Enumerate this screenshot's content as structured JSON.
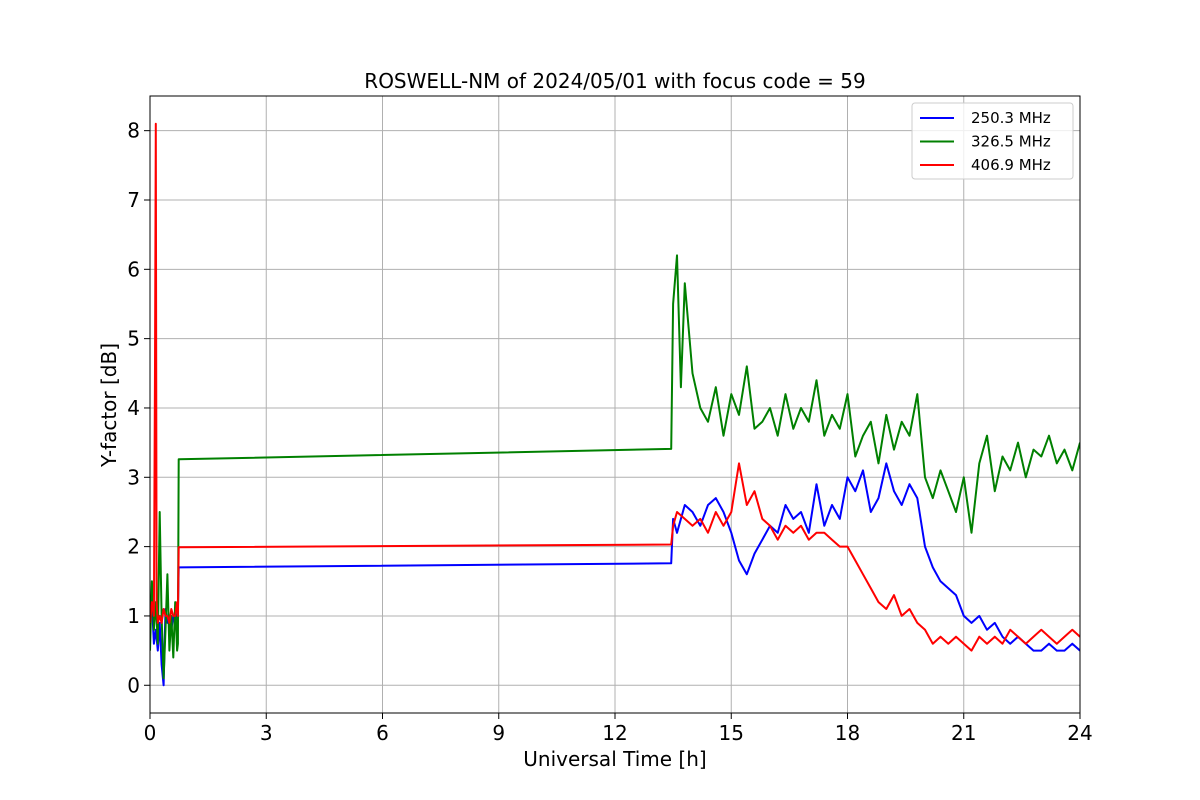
{
  "chart_data": {
    "type": "line",
    "title": "ROSWELL-NM of 2024/05/01 with focus code = 59",
    "xlabel": "Universal Time [h]",
    "ylabel": "Y-factor [dB]",
    "xlim": [
      0,
      24
    ],
    "ylim": [
      -0.4,
      8.5
    ],
    "xticks": [
      0,
      3,
      6,
      9,
      12,
      15,
      18,
      21,
      24
    ],
    "yticks": [
      0,
      1,
      2,
      3,
      4,
      5,
      6,
      7,
      8
    ],
    "grid": true,
    "legend_position": "top-right",
    "series": [
      {
        "name": "250.3 MHz",
        "color": "#0000ff",
        "x": [
          0,
          0.05,
          0.1,
          0.15,
          0.2,
          0.25,
          0.3,
          0.35,
          0.4,
          0.45,
          0.5,
          0.55,
          0.6,
          0.65,
          0.7,
          0.72,
          0.74,
          13.45,
          13.5,
          13.6,
          13.8,
          14.0,
          14.2,
          14.4,
          14.6,
          14.8,
          15.0,
          15.2,
          15.4,
          15.6,
          15.8,
          16.0,
          16.2,
          16.4,
          16.6,
          16.8,
          17.0,
          17.2,
          17.4,
          17.6,
          17.8,
          18.0,
          18.2,
          18.4,
          18.6,
          18.8,
          19.0,
          19.2,
          19.4,
          19.6,
          19.8,
          20.0,
          20.2,
          20.4,
          20.6,
          20.8,
          21.0,
          21.2,
          21.4,
          21.6,
          21.8,
          22.0,
          22.2,
          22.4,
          22.6,
          22.8,
          23.0,
          23.2,
          23.4,
          23.6,
          23.8,
          24.0
        ],
        "y": [
          0.9,
          1.2,
          0.6,
          0.8,
          0.5,
          0.9,
          0.3,
          0.0,
          1.1,
          0.9,
          1.0,
          0.8,
          1.0,
          0.9,
          1.0,
          1.05,
          1.7,
          1.76,
          2.4,
          2.2,
          2.6,
          2.5,
          2.3,
          2.6,
          2.7,
          2.5,
          2.2,
          1.8,
          1.6,
          1.9,
          2.1,
          2.3,
          2.2,
          2.6,
          2.4,
          2.5,
          2.2,
          2.9,
          2.3,
          2.6,
          2.4,
          3.0,
          2.8,
          3.1,
          2.5,
          2.7,
          3.2,
          2.8,
          2.6,
          2.9,
          2.7,
          2.0,
          1.7,
          1.5,
          1.4,
          1.3,
          1.0,
          0.9,
          1.0,
          0.8,
          0.9,
          0.7,
          0.6,
          0.7,
          0.6,
          0.5,
          0.5,
          0.6,
          0.5,
          0.5,
          0.6,
          0.5
        ]
      },
      {
        "name": "326.5 MHz",
        "color": "#008000",
        "x": [
          0,
          0.05,
          0.1,
          0.15,
          0.2,
          0.25,
          0.3,
          0.35,
          0.4,
          0.45,
          0.5,
          0.55,
          0.6,
          0.65,
          0.7,
          0.72,
          0.74,
          13.45,
          13.5,
          13.6,
          13.7,
          13.8,
          14.0,
          14.2,
          14.4,
          14.6,
          14.8,
          15.0,
          15.2,
          15.4,
          15.6,
          15.8,
          16.0,
          16.2,
          16.4,
          16.6,
          16.8,
          17.0,
          17.2,
          17.4,
          17.6,
          17.8,
          18.0,
          18.2,
          18.4,
          18.6,
          18.8,
          19.0,
          19.2,
          19.4,
          19.6,
          19.8,
          20.0,
          20.2,
          20.4,
          20.6,
          20.8,
          21.0,
          21.2,
          21.4,
          21.6,
          21.8,
          22.0,
          22.2,
          22.4,
          22.6,
          22.8,
          23.0,
          23.2,
          23.4,
          23.6,
          23.8,
          24.0
        ],
        "y": [
          0.5,
          1.5,
          0.8,
          1.2,
          0.6,
          2.5,
          1.0,
          0.1,
          0.8,
          1.6,
          0.5,
          1.0,
          0.4,
          1.2,
          0.5,
          0.6,
          3.26,
          3.41,
          5.5,
          6.2,
          4.3,
          5.8,
          4.5,
          4.0,
          3.8,
          4.3,
          3.6,
          4.2,
          3.9,
          4.6,
          3.7,
          3.8,
          4.0,
          3.6,
          4.2,
          3.7,
          4.0,
          3.8,
          4.4,
          3.6,
          3.9,
          3.7,
          4.2,
          3.3,
          3.6,
          3.8,
          3.2,
          3.9,
          3.4,
          3.8,
          3.6,
          4.2,
          3.0,
          2.7,
          3.1,
          2.8,
          2.5,
          3.0,
          2.2,
          3.2,
          3.6,
          2.8,
          3.3,
          3.1,
          3.5,
          3.0,
          3.4,
          3.3,
          3.6,
          3.2,
          3.4,
          3.1,
          3.5
        ]
      },
      {
        "name": "406.9 MHz",
        "color": "#ff0000",
        "x": [
          0,
          0.05,
          0.1,
          0.13,
          0.15,
          0.17,
          0.2,
          0.25,
          0.3,
          0.35,
          0.4,
          0.45,
          0.5,
          0.55,
          0.6,
          0.65,
          0.7,
          0.72,
          0.74,
          13.45,
          13.5,
          13.6,
          13.8,
          14.0,
          14.2,
          14.4,
          14.6,
          14.8,
          15.0,
          15.2,
          15.4,
          15.6,
          15.8,
          16.0,
          16.2,
          16.4,
          16.6,
          16.8,
          17.0,
          17.2,
          17.4,
          17.6,
          17.8,
          18.0,
          18.2,
          18.4,
          18.6,
          18.8,
          19.0,
          19.2,
          19.4,
          19.6,
          19.8,
          20.0,
          20.2,
          20.4,
          20.6,
          20.8,
          21.0,
          21.2,
          21.4,
          21.6,
          21.8,
          22.0,
          22.2,
          22.4,
          22.6,
          22.8,
          23.0,
          23.2,
          23.4,
          23.6,
          23.8,
          24.0
        ],
        "y": [
          0.9,
          1.2,
          1.0,
          4.6,
          8.1,
          1.2,
          0.9,
          1.0,
          0.9,
          1.1,
          1.0,
          1.0,
          0.9,
          1.1,
          1.0,
          1.0,
          1.2,
          1.0,
          1.99,
          2.03,
          2.3,
          2.5,
          2.4,
          2.3,
          2.4,
          2.2,
          2.5,
          2.3,
          2.5,
          3.2,
          2.6,
          2.8,
          2.4,
          2.3,
          2.1,
          2.3,
          2.2,
          2.3,
          2.1,
          2.2,
          2.2,
          2.1,
          2.0,
          2.0,
          1.8,
          1.6,
          1.4,
          1.2,
          1.1,
          1.3,
          1.0,
          1.1,
          0.9,
          0.8,
          0.6,
          0.7,
          0.6,
          0.7,
          0.6,
          0.5,
          0.7,
          0.6,
          0.7,
          0.6,
          0.8,
          0.7,
          0.6,
          0.7,
          0.8,
          0.7,
          0.6,
          0.7,
          0.8,
          0.7
        ]
      }
    ]
  }
}
